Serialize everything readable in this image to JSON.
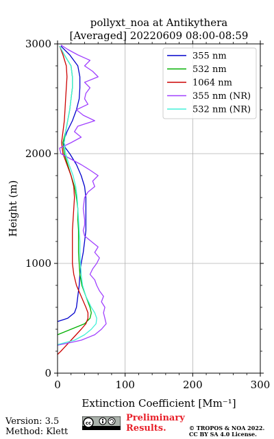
{
  "chart_data": {
    "type": "line",
    "title": "pollyxt_noa at Antikythera",
    "subtitle": "[Averaged] 20220609 08:00-08:59",
    "xlabel": "Extinction Coefficient [Mm⁻¹]",
    "ylabel": "Height (m)",
    "xlim": [
      0,
      300
    ],
    "ylim": [
      0,
      3000
    ],
    "xticks": [
      0,
      100,
      200,
      300
    ],
    "yticks": [
      0,
      1000,
      2000,
      3000
    ],
    "grid": true,
    "legend_position": "top-right",
    "series": [
      {
        "name": "355 nm",
        "color": "#0000cc",
        "style": "solid",
        "y": [
          470,
          500,
          550,
          600,
          700,
          800,
          900,
          1000,
          1100,
          1200,
          1300,
          1400,
          1500,
          1600,
          1700,
          1800,
          1900,
          2000,
          2050,
          2100,
          2200,
          2300,
          2400,
          2500,
          2600,
          2700,
          2800,
          2900,
          2980
        ],
        "x": [
          0,
          15,
          25,
          28,
          30,
          32,
          33,
          35,
          38,
          40,
          42,
          42,
          42,
          42,
          40,
          35,
          28,
          18,
          12,
          8,
          14,
          22,
          28,
          32,
          33,
          33,
          30,
          18,
          5
        ]
      },
      {
        "name": "532 nm",
        "color": "#00b000",
        "style": "solid",
        "y": [
          350,
          400,
          450,
          500,
          550,
          600,
          700,
          800,
          900,
          1000,
          1100,
          1200,
          1300,
          1400,
          1500,
          1600,
          1700,
          1800,
          1900,
          2000,
          2100,
          2200,
          2300,
          2400,
          2500,
          2600,
          2700,
          2800,
          2900,
          2980
        ],
        "x": [
          0,
          20,
          40,
          48,
          50,
          48,
          42,
          36,
          33,
          32,
          31,
          31,
          31,
          30,
          30,
          28,
          25,
          20,
          15,
          10,
          8,
          12,
          15,
          18,
          20,
          22,
          22,
          20,
          10,
          3
        ]
      },
      {
        "name": "1064 nm",
        "color": "#cc0000",
        "style": "solid",
        "y": [
          170,
          200,
          300,
          400,
          450,
          500,
          550,
          600,
          700,
          800,
          900,
          1000,
          1100,
          1200,
          1300,
          1400,
          1500,
          1600,
          1700,
          1800,
          1900,
          2000,
          2100,
          2200,
          2300,
          2400,
          2500,
          2600,
          2700,
          2800,
          2900,
          2980
        ],
        "x": [
          0,
          5,
          20,
          35,
          42,
          45,
          45,
          42,
          35,
          28,
          24,
          22,
          22,
          22,
          22,
          23,
          24,
          25,
          24,
          20,
          14,
          8,
          6,
          8,
          10,
          11,
          12,
          13,
          14,
          13,
          8,
          3
        ]
      },
      {
        "name": "355 nm (NR)",
        "color": "#a040ff",
        "style": "solid",
        "y": [
          255,
          280,
          300,
          350,
          400,
          450,
          500,
          550,
          600,
          650,
          700,
          750,
          800,
          850,
          900,
          950,
          1000,
          1050,
          1100,
          1150,
          1200,
          1250,
          1300,
          1350,
          1400,
          1500,
          1600,
          1650,
          1700,
          1750,
          1800,
          1850,
          1900,
          1950,
          2000,
          2050,
          2100,
          2150,
          2200,
          2250,
          2300,
          2350,
          2400,
          2450,
          2500,
          2550,
          2600,
          2650,
          2700,
          2750,
          2800,
          2850,
          2900,
          2950,
          2990
        ],
        "x": [
          0,
          20,
          35,
          55,
          65,
          72,
          70,
          68,
          70,
          65,
          68,
          62,
          58,
          55,
          48,
          52,
          58,
          62,
          55,
          60,
          50,
          40,
          38,
          40,
          40,
          38,
          40,
          45,
          55,
          52,
          60,
          48,
          35,
          20,
          5,
          3,
          20,
          35,
          25,
          30,
          55,
          38,
          28,
          45,
          40,
          42,
          48,
          40,
          60,
          52,
          40,
          48,
          30,
          15,
          5
        ]
      },
      {
        "name": "532 nm (NR)",
        "color": "#40f0d8",
        "style": "solid",
        "y": [
          260,
          300,
          350,
          400,
          450,
          500,
          550,
          600,
          700,
          800,
          900,
          1000,
          1100,
          1200,
          1300,
          1400,
          1500,
          1600,
          1700,
          1800,
          1900,
          2000,
          2100,
          2200,
          2300,
          2400,
          2500,
          2600,
          2700,
          2800,
          2900,
          2980
        ],
        "x": [
          0,
          25,
          40,
          50,
          57,
          58,
          55,
          50,
          42,
          37,
          35,
          34,
          33,
          33,
          32,
          31,
          30,
          29,
          27,
          23,
          17,
          12,
          10,
          12,
          15,
          18,
          20,
          22,
          22,
          20,
          10,
          3
        ]
      }
    ]
  },
  "footer": {
    "version": "Version: 3.5",
    "method": "Method: Klett",
    "preliminary_line1": "Preliminary",
    "preliminary_line2": "Results.",
    "copyright_line1": "© TROPOS & NOA 2022.",
    "copyright_line2": "CC BY SA 4.0 License."
  }
}
